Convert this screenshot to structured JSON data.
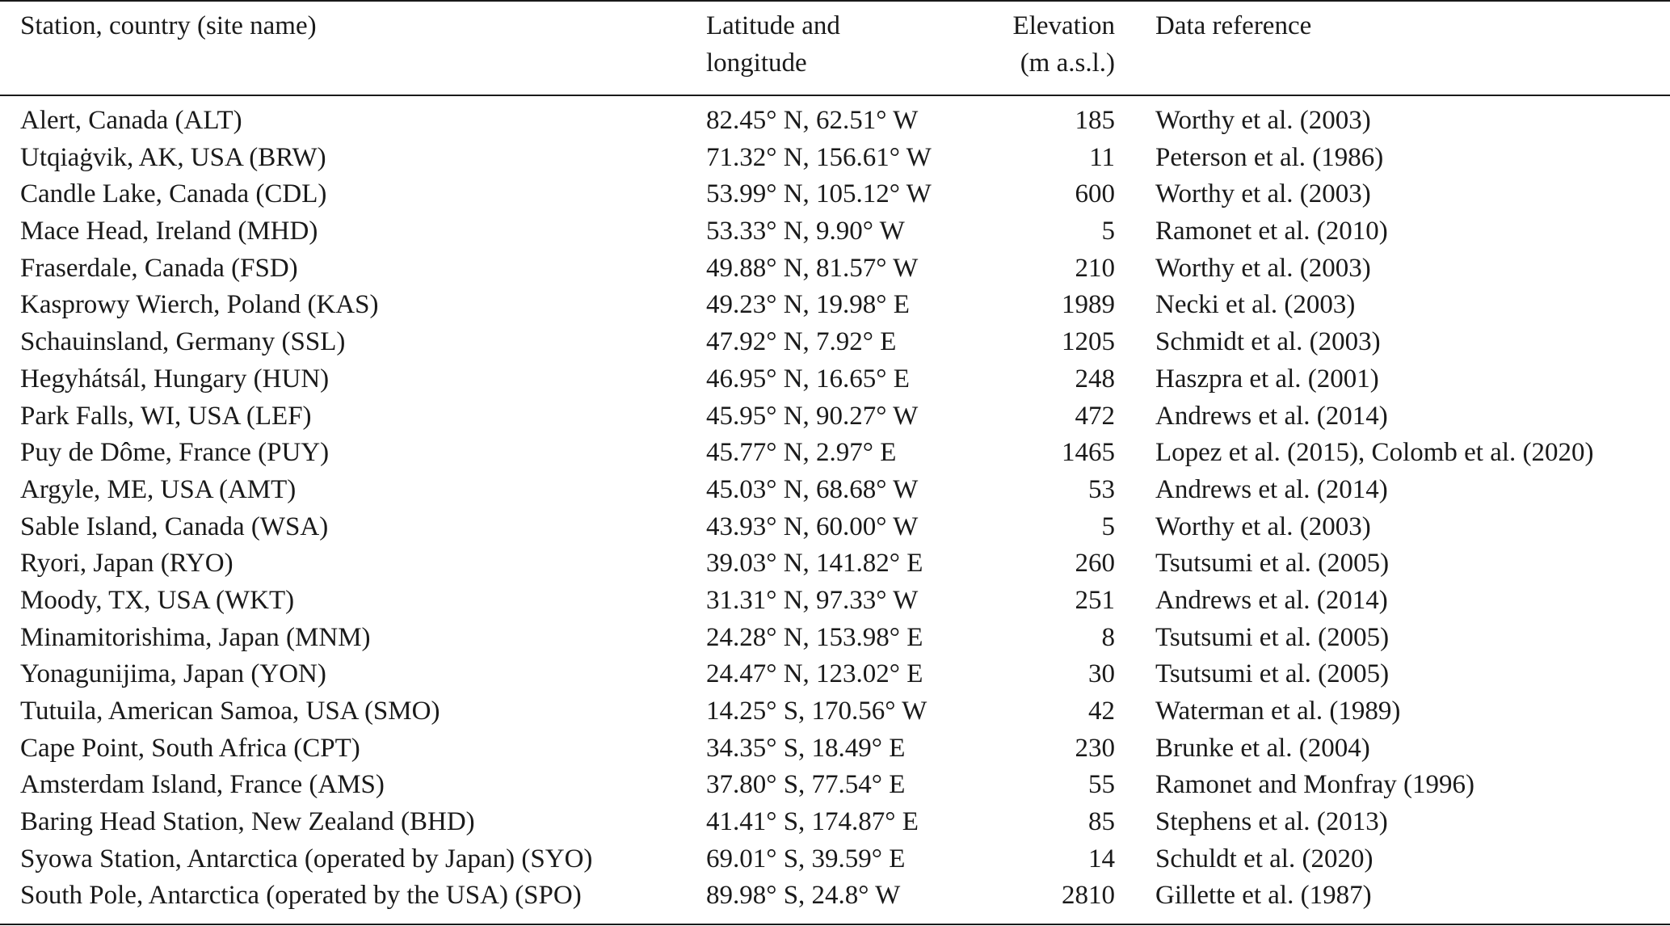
{
  "table": {
    "headers": {
      "station": "Station, country (site name)",
      "latlon_line1": "Latitude and",
      "latlon_line2": "longitude",
      "elevation_line1": "Elevation",
      "elevation_line2": "(m a.s.l.)",
      "reference": "Data reference"
    },
    "rows": [
      {
        "station": "Alert, Canada (ALT)",
        "latlon": "82.45° N, 62.51° W",
        "elevation": "185",
        "reference": "Worthy et al. (2003)"
      },
      {
        "station": "Utqiaġvik, AK, USA (BRW)",
        "latlon": "71.32° N, 156.61° W",
        "elevation": "11",
        "reference": "Peterson et al. (1986)"
      },
      {
        "station": "Candle Lake, Canada (CDL)",
        "latlon": "53.99° N, 105.12° W",
        "elevation": "600",
        "reference": "Worthy et al. (2003)"
      },
      {
        "station": "Mace Head, Ireland (MHD)",
        "latlon": "53.33° N, 9.90° W",
        "elevation": "5",
        "reference": "Ramonet et al. (2010)"
      },
      {
        "station": "Fraserdale, Canada (FSD)",
        "latlon": "49.88° N, 81.57° W",
        "elevation": "210",
        "reference": "Worthy et al. (2003)"
      },
      {
        "station": "Kasprowy Wierch, Poland (KAS)",
        "latlon": "49.23° N, 19.98° E",
        "elevation": "1989",
        "reference": "Necki et al. (2003)"
      },
      {
        "station": "Schauinsland, Germany (SSL)",
        "latlon": "47.92° N, 7.92° E",
        "elevation": "1205",
        "reference": "Schmidt et al. (2003)"
      },
      {
        "station": "Hegyhátsál, Hungary (HUN)",
        "latlon": "46.95° N, 16.65° E",
        "elevation": "248",
        "reference": "Haszpra et al. (2001)"
      },
      {
        "station": "Park Falls, WI, USA (LEF)",
        "latlon": "45.95° N, 90.27° W",
        "elevation": "472",
        "reference": "Andrews et al. (2014)"
      },
      {
        "station": "Puy de Dôme, France (PUY)",
        "latlon": "45.77° N, 2.97° E",
        "elevation": "1465",
        "reference": "Lopez et al. (2015), Colomb et al. (2020)"
      },
      {
        "station": "Argyle, ME, USA (AMT)",
        "latlon": "45.03° N, 68.68° W",
        "elevation": "53",
        "reference": "Andrews et al. (2014)"
      },
      {
        "station": "Sable Island, Canada (WSA)",
        "latlon": "43.93° N, 60.00° W",
        "elevation": "5",
        "reference": "Worthy et al. (2003)"
      },
      {
        "station": "Ryori, Japan (RYO)",
        "latlon": "39.03° N, 141.82° E",
        "elevation": "260",
        "reference": "Tsutsumi et al. (2005)"
      },
      {
        "station": "Moody, TX, USA (WKT)",
        "latlon": "31.31° N, 97.33° W",
        "elevation": "251",
        "reference": "Andrews et al. (2014)"
      },
      {
        "station": "Minamitorishima, Japan (MNM)",
        "latlon": "24.28° N, 153.98° E",
        "elevation": "8",
        "reference": "Tsutsumi et al. (2005)"
      },
      {
        "station": "Yonagunijima, Japan (YON)",
        "latlon": "24.47° N, 123.02° E",
        "elevation": "30",
        "reference": "Tsutsumi et al. (2005)"
      },
      {
        "station": "Tutuila, American Samoa, USA (SMO)",
        "latlon": "14.25° S, 170.56° W",
        "elevation": "42",
        "reference": "Waterman et al. (1989)"
      },
      {
        "station": "Cape Point, South Africa (CPT)",
        "latlon": "34.35° S, 18.49° E",
        "elevation": "230",
        "reference": "Brunke et al. (2004)"
      },
      {
        "station": "Amsterdam Island, France (AMS)",
        "latlon": "37.80° S, 77.54° E",
        "elevation": "55",
        "reference": "Ramonet and Monfray (1996)"
      },
      {
        "station": "Baring Head Station, New Zealand (BHD)",
        "latlon": "41.41° S, 174.87° E",
        "elevation": "85",
        "reference": "Stephens et al. (2013)"
      },
      {
        "station": "Syowa Station, Antarctica (operated by Japan) (SYO)",
        "latlon": "69.01° S, 39.59° E",
        "elevation": "14",
        "reference": "Schuldt et al. (2020)"
      },
      {
        "station": "South Pole, Antarctica (operated by the USA) (SPO)",
        "latlon": "89.98° S, 24.8° W",
        "elevation": "2810",
        "reference": "Gillette et al. (1987)"
      }
    ]
  }
}
